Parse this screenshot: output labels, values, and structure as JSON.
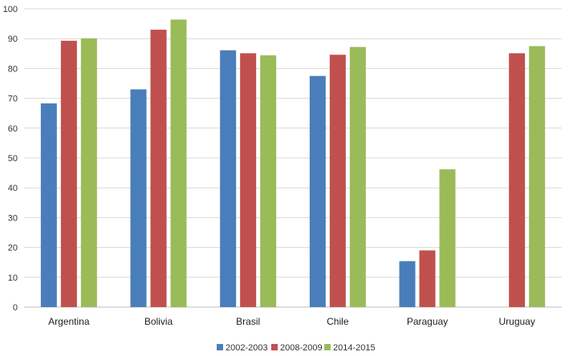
{
  "chart_data": {
    "type": "bar",
    "categories": [
      "Argentina",
      "Bolivia",
      "Brasil",
      "Chile",
      "Paraguay",
      "Uruguay"
    ],
    "series": [
      {
        "name": "2002-2003",
        "color": "#4a7ebb",
        "values": [
          68.3,
          73.0,
          86.1,
          77.5,
          15.4,
          null
        ]
      },
      {
        "name": "2008-2009",
        "color": "#c0504d",
        "values": [
          89.3,
          93.0,
          85.1,
          84.6,
          19.0,
          85.1
        ]
      },
      {
        "name": "2014-2015",
        "color": "#9bbb59",
        "values": [
          90.1,
          96.4,
          84.4,
          87.2,
          46.2,
          87.5
        ]
      }
    ],
    "ylim": [
      0,
      100
    ],
    "yticks": [
      0,
      10,
      20,
      30,
      40,
      50,
      60,
      70,
      80,
      90,
      100
    ],
    "grid": true,
    "legend": "bottom-center"
  }
}
